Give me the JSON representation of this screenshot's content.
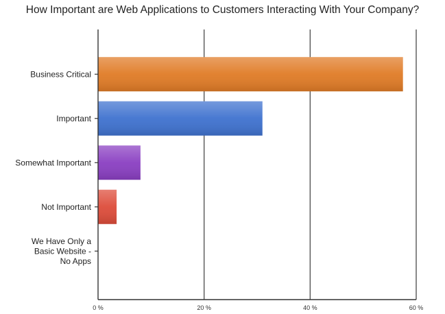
{
  "chart_data": {
    "type": "bar",
    "orientation": "horizontal",
    "title": "How Important are Web Applications to Customers Interacting With Your Company?",
    "categories": [
      [
        "Business Critical"
      ],
      [
        "Important"
      ],
      [
        "Somewhat Important"
      ],
      [
        "Not Important"
      ],
      [
        "We Have Only a",
        "Basic Website -",
        "No Apps"
      ]
    ],
    "values": [
      57.5,
      31,
      8,
      3.5,
      0
    ],
    "colors": [
      "#e07b26",
      "#3f72cf",
      "#8a3fc2",
      "#dd4c3a",
      "#999999"
    ],
    "xlim": [
      0,
      60
    ],
    "xticks": [
      "0 %",
      "20 %",
      "40 %",
      "60 %"
    ],
    "grid": true,
    "legend": "none"
  }
}
